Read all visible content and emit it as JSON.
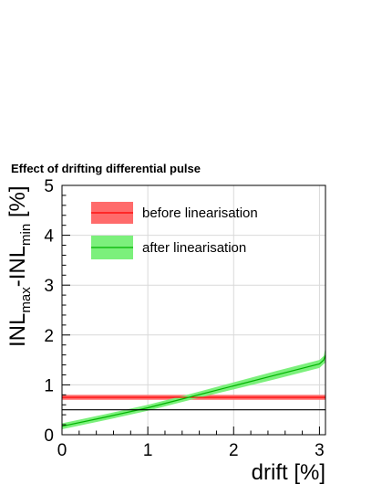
{
  "chart_data": {
    "type": "line",
    "title": "Effect of drifting differential pulse",
    "xlabel": "drift [%]",
    "ylabel": {
      "main": "INL",
      "sub1": "max",
      "mid": "-INL",
      "sub2": "min",
      "unit": " [%]"
    },
    "xlim": [
      0,
      3.07
    ],
    "ylim": [
      0,
      5
    ],
    "x_ticks": [
      0,
      1,
      2,
      3
    ],
    "y_ticks": [
      0,
      1,
      2,
      3,
      4,
      5
    ],
    "grid": true,
    "legend_position": "top-left",
    "series": [
      {
        "name": "before linearisation",
        "color": "#ff0000",
        "band_color": "#ff6b6b",
        "x": [
          0,
          3.07
        ],
        "y": [
          0.75,
          0.75
        ],
        "band": [
          0.05,
          0.05
        ]
      },
      {
        "name": "after linearisation",
        "color": "#00b400",
        "band_color": "#7cf07c",
        "x": [
          0,
          0.5,
          1.0,
          1.5,
          2.0,
          2.5,
          3.0,
          3.05,
          3.07
        ],
        "y": [
          0.17,
          0.35,
          0.54,
          0.76,
          0.98,
          1.2,
          1.42,
          1.5,
          1.6
        ],
        "band": [
          0.06,
          0.06,
          0.06,
          0.06,
          0.07,
          0.08,
          0.08,
          0.08,
          0.15
        ]
      },
      {
        "name": "",
        "color": "#000000",
        "x": [
          0,
          3.07
        ],
        "y": [
          0.5,
          0.5
        ]
      }
    ]
  }
}
